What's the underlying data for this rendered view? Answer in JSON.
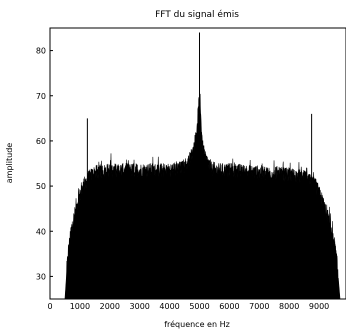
{
  "chart_data": {
    "type": "area",
    "title": "FFT du signal émis",
    "xlabel": "fréquence en Hz",
    "ylabel": "amplitude",
    "xlim": [
      0,
      9900
    ],
    "ylim": [
      25,
      85
    ],
    "xticks": [
      0,
      1000,
      2000,
      3000,
      4000,
      5000,
      6000,
      7000,
      8000,
      9000
    ],
    "yticks": [
      30,
      40,
      50,
      60,
      70,
      80
    ],
    "grid": false,
    "legend": "none",
    "fill_color": "#000000",
    "envelope": {
      "x": [
        500,
        550,
        600,
        700,
        800,
        900,
        1000,
        1100,
        1200,
        1300,
        1500,
        2000,
        3000,
        4000,
        4400,
        4600,
        4800,
        4900,
        4950,
        5000,
        5050,
        5100,
        5200,
        5400,
        5600,
        6000,
        7000,
        8000,
        8500,
        8700,
        8900,
        9100,
        9300,
        9500,
        9600,
        9700
      ],
      "y": [
        25,
        30,
        35,
        40,
        43,
        46,
        48,
        50,
        51,
        52,
        53,
        53.5,
        53.5,
        53.5,
        54,
        55,
        58,
        62,
        66,
        70,
        65,
        59,
        56,
        54,
        53.5,
        53.5,
        53,
        52.5,
        52,
        51,
        50,
        47,
        43,
        38,
        33,
        25
      ]
    },
    "spikes": [
      {
        "x": 1250,
        "y": 65
      },
      {
        "x": 5000,
        "y": 84
      },
      {
        "x": 8750,
        "y": 66
      }
    ]
  }
}
